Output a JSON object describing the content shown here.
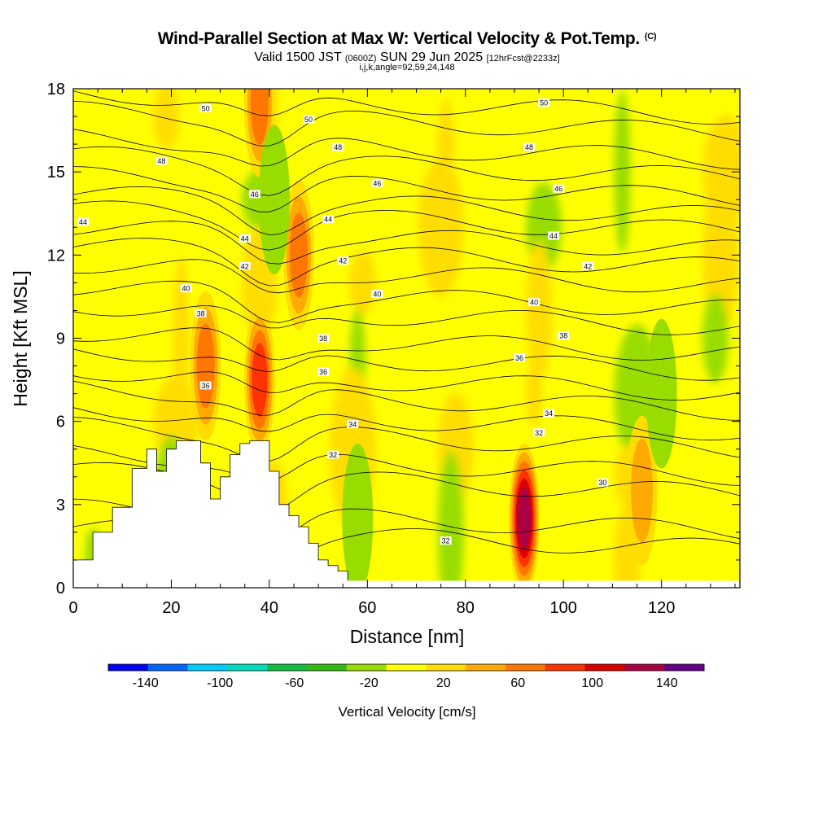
{
  "header": {
    "title": "Wind-Parallel Section at Max W: Vertical Velocity & Pot.Temp.",
    "copyright": "(C)",
    "valid_prefix": "Valid 1500 JST ",
    "valid_utc": "(0600Z)",
    "valid_date": " SUN 29 Jun 2025 ",
    "forecast_info": "[12hrFcst@2233z]",
    "section_info": "i,j,k,angle=92,59,24,148"
  },
  "chart_data": {
    "type": "heatmap",
    "xlabel": "Distance [nm]",
    "ylabel": "Height [Kft MSL]",
    "xlim": [
      0,
      136
    ],
    "ylim": [
      0,
      18
    ],
    "x_ticks": [
      0,
      20,
      40,
      60,
      80,
      100,
      120
    ],
    "y_ticks": [
      0,
      3,
      6,
      9,
      12,
      15,
      18
    ],
    "colorbar": {
      "title": "Vertical Velocity [cm/s]",
      "bounds": [
        -160,
        160
      ],
      "step": 20,
      "tick_labels": [
        "-140",
        "-100",
        "-60",
        "-20",
        "20",
        "60",
        "100",
        "140"
      ],
      "tick_values": [
        -140,
        -100,
        -60,
        -20,
        20,
        60,
        100,
        140
      ],
      "colors": [
        "#0000ff",
        "#0066ff",
        "#00ccff",
        "#00ddbb",
        "#11bb44",
        "#33bb11",
        "#99dd00",
        "#ffff00",
        "#ffdd00",
        "#ffaa00",
        "#ff7700",
        "#ff3300",
        "#dd0000",
        "#aa0044",
        "#660088"
      ]
    },
    "terrain": {
      "x": [
        0,
        4,
        8,
        12,
        15,
        17,
        19,
        21,
        23,
        26,
        28,
        30,
        32,
        34,
        36,
        38,
        40,
        42,
        44,
        46,
        48,
        50,
        52,
        54,
        56,
        56
      ],
      "h": [
        1.0,
        2.0,
        2.9,
        4.3,
        5.0,
        4.2,
        5.0,
        5.3,
        5.3,
        4.5,
        3.2,
        4.0,
        4.8,
        5.2,
        5.3,
        5.3,
        4.2,
        3.0,
        2.6,
        2.2,
        1.6,
        1.0,
        0.8,
        0.6,
        0.3,
        0.3
      ]
    },
    "updraft_cores": [
      {
        "x": 92,
        "z": 2.5,
        "w": 110
      },
      {
        "x": 116,
        "z": 3.5,
        "w": 40
      },
      {
        "x": 38,
        "z": 7.5,
        "w": 70
      },
      {
        "x": 27,
        "z": 8,
        "w": 60
      },
      {
        "x": 46,
        "z": 12,
        "w": 55
      },
      {
        "x": 38,
        "z": 17.5,
        "w": 50
      }
    ],
    "downdraft_cores": [
      {
        "x": 41,
        "z": 14,
        "w": -30
      },
      {
        "x": 120,
        "z": 7,
        "w": -25
      },
      {
        "x": 58,
        "z": 2.5,
        "w": -25
      }
    ],
    "contour_field": "Potential Temperature",
    "contour_levels": [
      30,
      32,
      34,
      36,
      38,
      40,
      42,
      44,
      46,
      48,
      50
    ],
    "contour_labels": [
      {
        "text": "50",
        "x": 27,
        "z": 17.3
      },
      {
        "text": "48",
        "x": 18,
        "z": 15.4
      },
      {
        "text": "44",
        "x": 2,
        "z": 13.2
      },
      {
        "text": "46",
        "x": 37,
        "z": 14.2
      },
      {
        "text": "50",
        "x": 48,
        "z": 16.9
      },
      {
        "text": "48",
        "x": 54,
        "z": 15.9
      },
      {
        "text": "46",
        "x": 62,
        "z": 14.6
      },
      {
        "text": "44",
        "x": 52,
        "z": 13.3
      },
      {
        "text": "44",
        "x": 35,
        "z": 12.6
      },
      {
        "text": "42",
        "x": 35,
        "z": 11.6
      },
      {
        "text": "42",
        "x": 55,
        "z": 11.8
      },
      {
        "text": "40",
        "x": 23,
        "z": 10.8
      },
      {
        "text": "38",
        "x": 26,
        "z": 9.9
      },
      {
        "text": "40",
        "x": 62,
        "z": 10.6
      },
      {
        "text": "38",
        "x": 51,
        "z": 9.0
      },
      {
        "text": "36",
        "x": 51,
        "z": 7.8
      },
      {
        "text": "36",
        "x": 27,
        "z": 7.3
      },
      {
        "text": "34",
        "x": 57,
        "z": 5.9
      },
      {
        "text": "32",
        "x": 53,
        "z": 4.8
      },
      {
        "text": "32",
        "x": 76,
        "z": 1.7
      },
      {
        "text": "50",
        "x": 96,
        "z": 17.5
      },
      {
        "text": "48",
        "x": 93,
        "z": 15.9
      },
      {
        "text": "46",
        "x": 99,
        "z": 14.4
      },
      {
        "text": "44",
        "x": 98,
        "z": 12.7
      },
      {
        "text": "42",
        "x": 105,
        "z": 11.6
      },
      {
        "text": "40",
        "x": 94,
        "z": 10.3
      },
      {
        "text": "38",
        "x": 100,
        "z": 9.1
      },
      {
        "text": "36",
        "x": 91,
        "z": 8.3
      },
      {
        "text": "34",
        "x": 97,
        "z": 6.3
      },
      {
        "text": "32",
        "x": 95,
        "z": 5.6
      },
      {
        "text": "30",
        "x": 108,
        "z": 3.8
      }
    ]
  }
}
